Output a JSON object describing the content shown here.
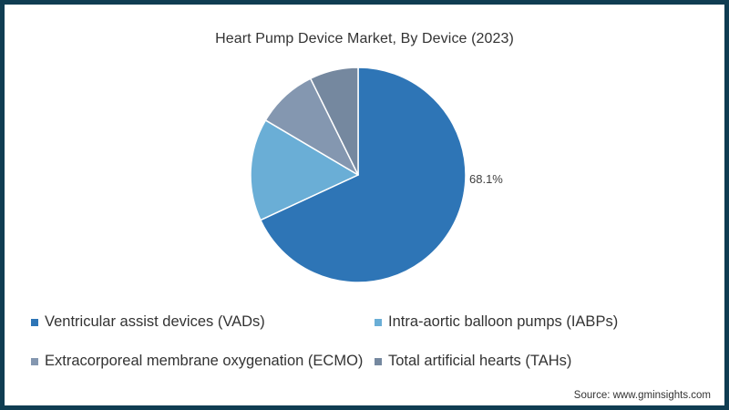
{
  "title": "Heart Pump Device Market, By Device (2023)",
  "source": "Source: www.gminsights.com",
  "slice_label": "68.1%",
  "colors": {
    "border": "#0f3d52",
    "vads": "#2e75b6",
    "iabps": "#6aaed6",
    "ecmo": "#8497b0",
    "tahs": "#75889f"
  },
  "legend": [
    {
      "label": "Ventricular assist devices (VADs)",
      "color": "#2e75b6"
    },
    {
      "label": "Intra-aortic balloon pumps (IABPs)",
      "color": "#6aaed6"
    },
    {
      "label": "Extracorporeal membrane oxygenation (ECMO)",
      "color": "#8497b0"
    },
    {
      "label": "Total artificial hearts (TAHs)",
      "color": "#75889f"
    }
  ],
  "chart_data": {
    "type": "pie",
    "title": "Heart Pump Device Market, By Device (2023)",
    "categories": [
      "Ventricular assist devices (VADs)",
      "Intra-aortic balloon pumps (IABPs)",
      "Extracorporeal membrane oxygenation (ECMO)",
      "Total artificial hearts (TAHs)"
    ],
    "values": [
      68.1,
      15.4,
      9.2,
      7.3
    ],
    "unit": "%",
    "data_labels": [
      "68.1%",
      "",
      "",
      ""
    ],
    "colors": [
      "#2e75b6",
      "#6aaed6",
      "#8497b0",
      "#75889f"
    ],
    "start_angle_deg": 0,
    "direction": "clockwise",
    "legend_position": "bottom",
    "source": "Source: www.gminsights.com"
  }
}
